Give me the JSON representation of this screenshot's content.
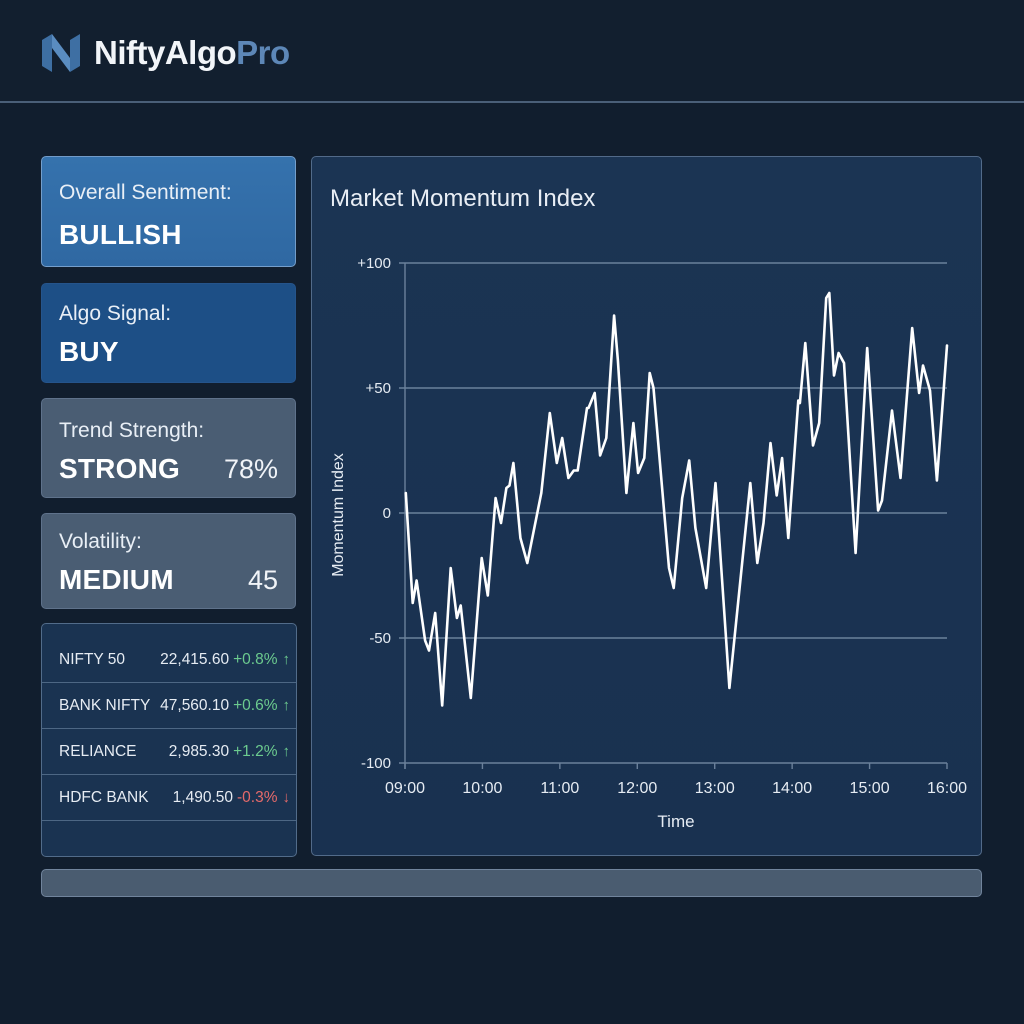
{
  "header": {
    "brand_primary": "NiftyAlgo",
    "brand_accent": "Pro",
    "logo_icon": "n-chevron-logo-icon"
  },
  "cards": {
    "sentiment": {
      "label": "Overall Sentiment:",
      "value": "BULLISH"
    },
    "signal": {
      "label": "Algo Signal:",
      "value": "BUY"
    },
    "trend": {
      "label": "Trend Strength:",
      "value": "STRONG",
      "metric": "78%"
    },
    "volatility": {
      "label": "Volatility:",
      "value": "MEDIUM",
      "metric": "45"
    }
  },
  "ticker": {
    "rows": [
      {
        "name": "NIFTY 50",
        "price": "22,415.60",
        "change": "+0.8%",
        "direction": "up",
        "arrow": "↑"
      },
      {
        "name": "BANK NIFTY",
        "price": "47,560.10",
        "change": "+0.6%",
        "direction": "up",
        "arrow": "↑"
      },
      {
        "name": "RELIANCE",
        "price": "2,985.30",
        "change": "+1.2%",
        "direction": "up",
        "arrow": "↑"
      },
      {
        "name": "HDFC BANK",
        "price": "1,490.50",
        "change": "-0.3%",
        "direction": "down",
        "arrow": "↓"
      }
    ]
  },
  "colors": {
    "background": "#111e2e",
    "sentiment_card": "#3572ad",
    "signal_card": "#1d4f86",
    "neutral_card": "#4a5d73",
    "chart_panel": "#1b3453",
    "positive": "#6ccb8f",
    "negative": "#e56a6a",
    "brand_accent": "#5d87b7"
  },
  "chart_data": {
    "type": "line",
    "title": "Market Momentum Index",
    "xlabel": "Time",
    "ylabel": "Momentum Index",
    "ylim": [
      -100,
      100
    ],
    "xlim": [
      "09:00",
      "16:00"
    ],
    "y_ticks": [
      "+100",
      "+50",
      "0",
      "-50",
      "-100"
    ],
    "x_ticks": [
      "09:00",
      "10:00",
      "11:00",
      "12:00",
      "13:00",
      "14:00",
      "15:00",
      "16:00"
    ],
    "grid": "horizontal",
    "legend": "none",
    "series": [
      {
        "name": "Momentum Index",
        "x_hours": [
          9.01,
          9.1,
          9.15,
          9.26,
          9.31,
          9.39,
          9.48,
          9.59,
          9.67,
          9.72,
          9.85,
          9.99,
          10.07,
          10.17,
          10.24,
          10.31,
          10.35,
          10.4,
          10.49,
          10.58,
          10.76,
          10.87,
          10.96,
          11.03,
          11.11,
          11.18,
          11.23,
          11.35,
          11.37,
          11.45,
          11.52,
          11.6,
          11.7,
          11.75,
          11.86,
          11.95,
          12.01,
          12.09,
          12.16,
          12.21,
          12.41,
          12.47,
          12.58,
          12.67,
          12.75,
          12.89,
          13.01,
          13.19,
          13.46,
          13.55,
          13.63,
          13.72,
          13.8,
          13.87,
          13.95,
          14.08,
          14.1,
          14.17,
          14.27,
          14.35,
          14.44,
          14.48,
          14.54,
          14.6,
          14.67,
          14.82,
          14.97,
          15.11,
          15.16,
          15.29,
          15.4,
          15.55,
          15.64,
          15.69,
          15.78,
          15.87,
          16.0
        ],
        "values": [
          8,
          -36,
          -27,
          -51,
          -55,
          -40,
          -77,
          -22,
          -42,
          -37,
          -74,
          -18,
          -33,
          6,
          -4,
          10,
          11,
          20,
          -10,
          -20,
          8,
          40,
          20,
          30,
          14,
          17,
          17,
          42,
          42,
          48,
          23,
          30,
          79,
          61,
          8,
          36,
          16,
          22,
          56,
          50,
          -22,
          -30,
          6,
          21,
          -6,
          -30,
          12,
          -70,
          12,
          -20,
          -4,
          28,
          7,
          22,
          -10,
          45,
          44,
          68,
          27,
          36,
          86,
          88,
          55,
          64,
          60,
          -16,
          66,
          1,
          5,
          41,
          14,
          74,
          48,
          59,
          49,
          13,
          67
        ]
      }
    ]
  }
}
